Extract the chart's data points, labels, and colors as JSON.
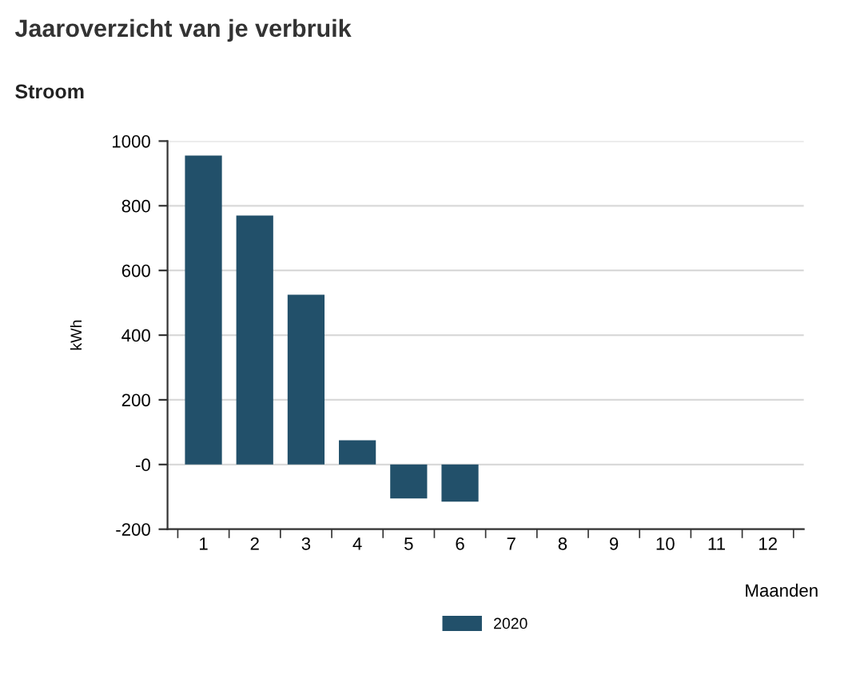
{
  "chart_data": {
    "type": "bar",
    "title": "Jaaroverzicht van je verbruik",
    "subtitle": "Stroom",
    "xlabel": "Maanden",
    "ylabel": "kWh",
    "categories": [
      "1",
      "2",
      "3",
      "4",
      "5",
      "6",
      "7",
      "8",
      "9",
      "10",
      "11",
      "12"
    ],
    "series": [
      {
        "name": "2020",
        "color": "#22506a",
        "values": [
          955,
          770,
          525,
          75,
          -105,
          -115,
          null,
          null,
          null,
          null,
          null,
          null
        ]
      }
    ],
    "ylim": [
      -200,
      1000
    ],
    "yticks": [
      -200,
      {
        "value": 0,
        "label": "-0"
      },
      200,
      400,
      600,
      800,
      1000
    ],
    "grid": "y",
    "legend": "bottom"
  }
}
